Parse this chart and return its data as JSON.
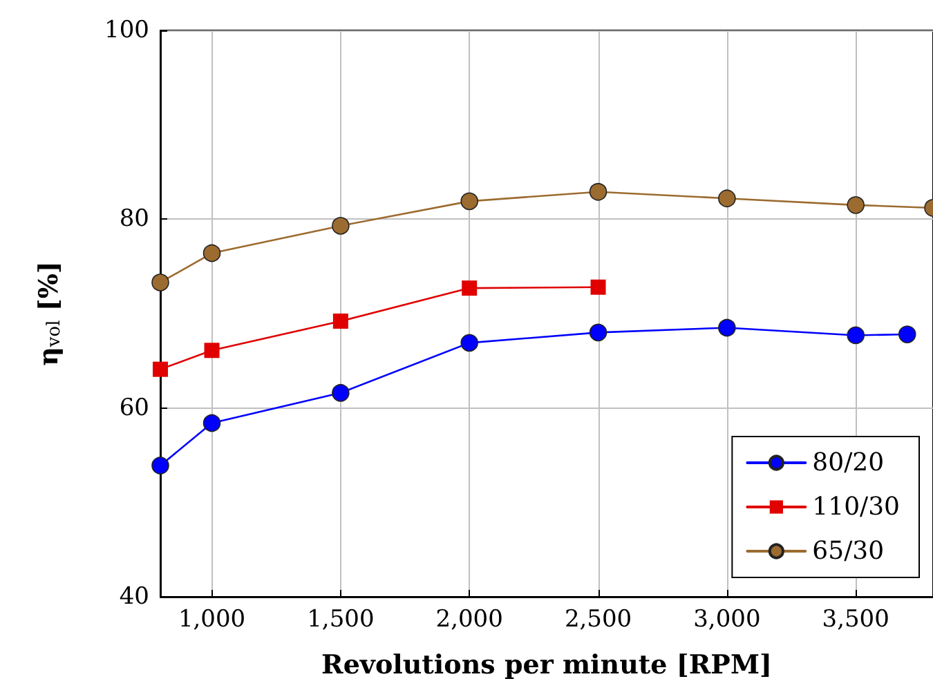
{
  "chart_data": {
    "type": "line",
    "xlabel": "Revolutions per minute [RPM]",
    "ylabel": "η$_{vol}$ [%]",
    "series": [
      {
        "name": "80/20",
        "color": "#0000ff",
        "marker": "circle",
        "x": [
          800,
          1000,
          1500,
          2000,
          2500,
          3000,
          3500,
          3700
        ],
        "values": [
          53.9,
          58.4,
          61.6,
          66.9,
          68.0,
          68.5,
          67.7,
          67.8
        ]
      },
      {
        "name": "110/30",
        "color": "#e00000",
        "marker": "square",
        "x": [
          800,
          1000,
          1500,
          2000,
          2500
        ],
        "values": [
          64.1,
          66.1,
          69.2,
          72.7,
          72.8
        ]
      },
      {
        "name": "65/30",
        "color": "#9c6b30",
        "marker": "circle",
        "x": [
          800,
          1000,
          1500,
          2000,
          2500,
          3000,
          3500,
          3800
        ],
        "values": [
          73.3,
          76.4,
          79.3,
          81.9,
          82.9,
          82.2,
          81.5,
          81.2
        ]
      }
    ],
    "xlim": [
      800,
      3800
    ],
    "xticks": [
      {
        "value": 1000,
        "label": "1,000"
      },
      {
        "value": 1500,
        "label": "1,500"
      },
      {
        "value": 2000,
        "label": "2,000"
      },
      {
        "value": 2500,
        "label": "2,500"
      },
      {
        "value": 3000,
        "label": "3,000"
      },
      {
        "value": 3500,
        "label": "3,500"
      }
    ],
    "ylim": [
      40,
      100
    ],
    "yticks": [
      40,
      60,
      80,
      100
    ],
    "grid": true,
    "legend": "bottom right",
    "line_style": "solid"
  }
}
